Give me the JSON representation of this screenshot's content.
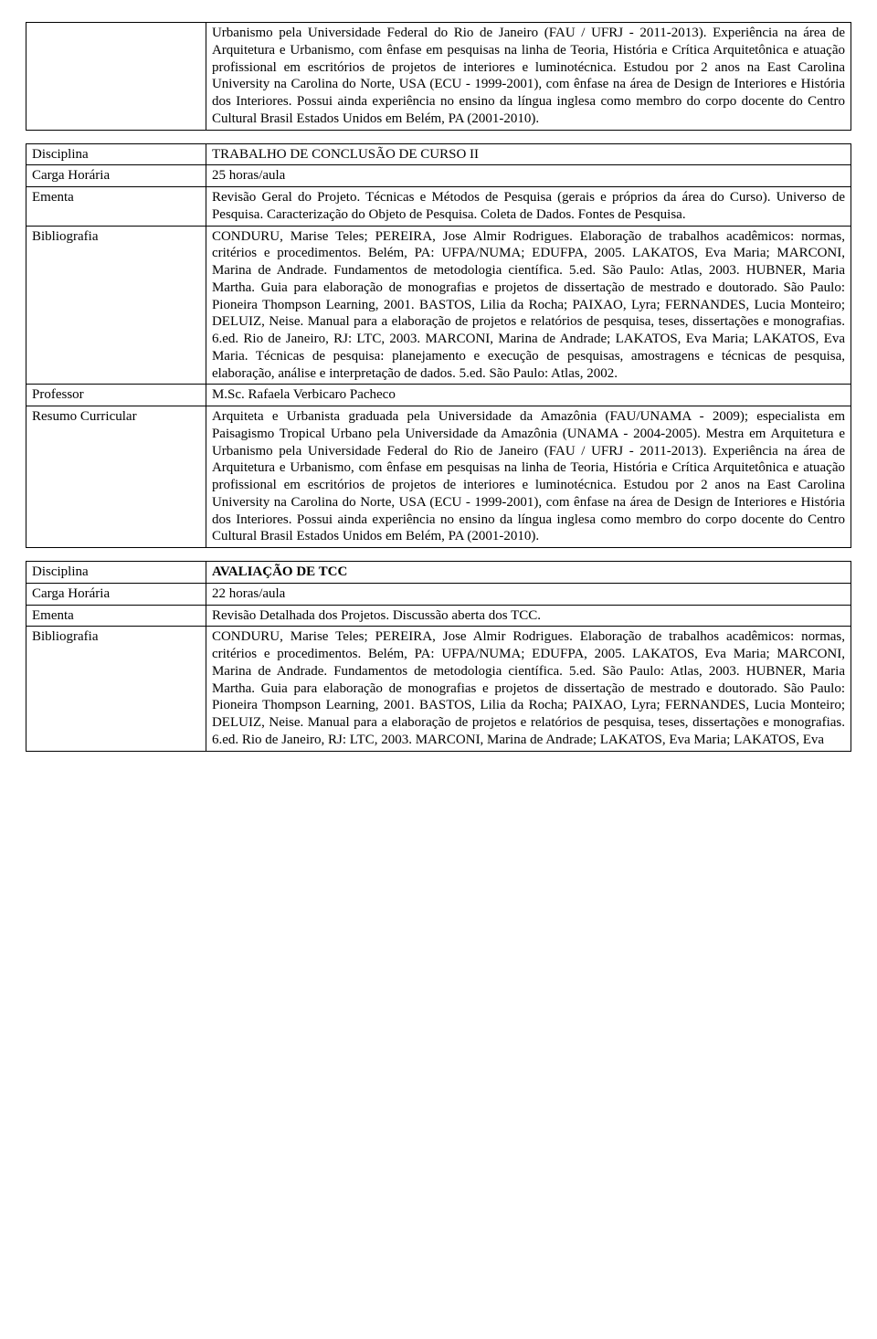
{
  "table1": {
    "intro_text": "Urbanismo pela Universidade Federal do Rio de Janeiro (FAU / UFRJ - 2011-2013). Experiência na área de Arquitetura e Urbanismo, com ênfase em pesquisas na linha de Teoria, História e Crítica Arquitetônica e atuação profissional em escritórios de projetos de interiores e luminotécnica. Estudou por 2 anos na East Carolina University na Carolina do Norte, USA (ECU - 1999-2001), com ênfase na área de Design de Interiores e História dos Interiores. Possui ainda experiência no ensino da língua inglesa como membro do corpo docente do Centro Cultural Brasil Estados Unidos em Belém, PA (2001-2010)."
  },
  "table2": {
    "disciplina_label": "Disciplina",
    "disciplina_value": "TRABALHO DE CONCLUSÃO DE CURSO II",
    "carga_label": "Carga Horária",
    "carga_value": "25 horas/aula",
    "ementa_label": "Ementa",
    "ementa_value": "Revisão Geral do Projeto. Técnicas e Métodos de Pesquisa (gerais e próprios da área do Curso). Universo de Pesquisa. Caracterização do Objeto de Pesquisa. Coleta de Dados. Fontes de Pesquisa.",
    "biblio_label": "Bibliografia",
    "biblio_value": "CONDURU, Marise Teles; PEREIRA, Jose Almir Rodrigues. Elaboração de trabalhos acadêmicos: normas, critérios e procedimentos. Belém, PA: UFPA/NUMA; EDUFPA, 2005.\nLAKATOS, Eva Maria; MARCONI, Marina de Andrade. Fundamentos de metodologia científica. 5.ed. São Paulo: Atlas, 2003.\nHUBNER, Maria Martha. Guia para elaboração de monografias e projetos de dissertação de mestrado e doutorado. São Paulo: Pioneira Thompson Learning, 2001.\nBASTOS, Lilia da Rocha; PAIXAO, Lyra; FERNANDES, Lucia Monteiro; DELUIZ, Neise.  Manual para a elaboração de projetos e relatórios de pesquisa, teses, dissertações e monografias. 6.ed. Rio de Janeiro, RJ: LTC, 2003.\nMARCONI, Marina de Andrade; LAKATOS, Eva Maria; LAKATOS, Eva Maria. Técnicas de pesquisa: planejamento e execução de pesquisas, amostragens e técnicas de pesquisa, elaboração, análise e interpretação de dados. 5.ed. São Paulo: Atlas, 2002.",
    "professor_label": "Professor",
    "professor_value": "M.Sc. Rafaela Verbicaro Pacheco",
    "resumo_label": "Resumo Curricular",
    "resumo_value": "Arquiteta e Urbanista graduada pela Universidade da Amazônia (FAU/UNAMA - 2009); especialista em Paisagismo Tropical Urbano pela Universidade da Amazônia (UNAMA - 2004-2005). Mestra em Arquitetura e Urbanismo pela Universidade Federal do Rio de Janeiro (FAU / UFRJ - 2011-2013). Experiência na área de Arquitetura e Urbanismo, com ênfase em pesquisas na linha de Teoria, História e Crítica Arquitetônica e atuação profissional em escritórios de projetos de interiores e luminotécnica. Estudou por 2 anos na East Carolina University na Carolina do Norte, USA (ECU - 1999-2001), com ênfase na área de Design de Interiores e História dos Interiores. Possui ainda experiência no ensino da língua inglesa como membro do corpo docente do Centro Cultural Brasil Estados Unidos em Belém, PA (2001-2010)."
  },
  "table3": {
    "disciplina_label": "Disciplina",
    "disciplina_value": "AVALIAÇÃO DE TCC",
    "carga_label": "Carga Horária",
    "carga_value": "22 horas/aula",
    "ementa_label": "Ementa",
    "ementa_value": "Revisão Detalhada dos Projetos. Discussão aberta dos TCC.",
    "biblio_label": "Bibliografia",
    "biblio_value": "CONDURU, Marise Teles; PEREIRA, Jose Almir Rodrigues. Elaboração de trabalhos acadêmicos: normas, critérios e procedimentos. Belém, PA: UFPA/NUMA; EDUFPA, 2005.\nLAKATOS, Eva Maria; MARCONI, Marina de Andrade. Fundamentos de metodologia científica. 5.ed. São Paulo: Atlas, 2003.\nHUBNER, Maria Martha. Guia para elaboração de monografias e projetos de dissertação de mestrado e doutorado. São Paulo: Pioneira Thompson Learning, 2001.\nBASTOS, Lilia da Rocha; PAIXAO, Lyra; FERNANDES, Lucia Monteiro; DELUIZ, Neise.  Manual para a elaboração de projetos e relatórios de pesquisa, teses, dissertações e monografias. 6.ed. Rio de Janeiro, RJ: LTC, 2003.\nMARCONI, Marina de Andrade; LAKATOS, Eva Maria; LAKATOS, Eva"
  }
}
